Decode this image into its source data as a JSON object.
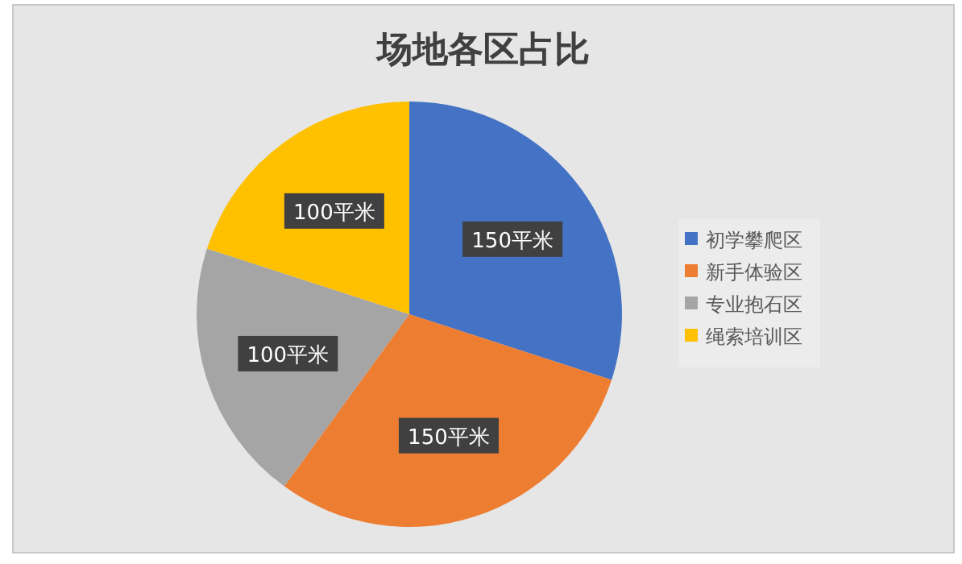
{
  "chart_data": {
    "type": "pie",
    "title": "场地各区占比",
    "categories": [
      "初学攀爬区",
      "新手体验区",
      "专业抱石区",
      "绳索培训区"
    ],
    "values": [
      150,
      150,
      100,
      100
    ],
    "colors": [
      "#4472c4",
      "#ed7d31",
      "#a5a5a5",
      "#ffc000"
    ],
    "value_labels": [
      "150平米",
      "150平米",
      "100平米",
      "100平米"
    ],
    "legend": "right"
  }
}
